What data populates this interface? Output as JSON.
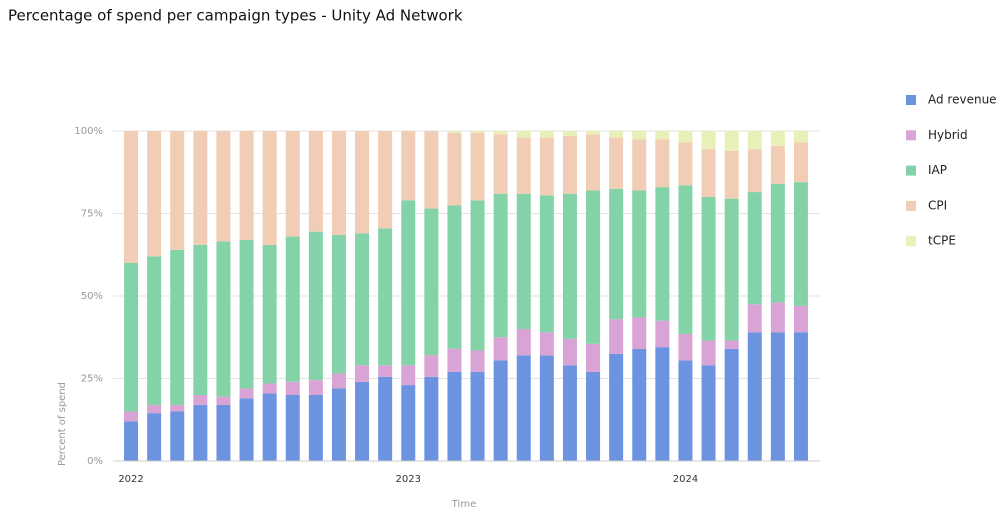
{
  "chart_data": {
    "type": "stacked_bar",
    "title": "Percentage of spend per campaign types - Unity Ad Network",
    "x_label": "Time",
    "y_label": "Percent of spend",
    "categories": [
      "2022",
      null,
      null,
      null,
      null,
      null,
      null,
      null,
      null,
      null,
      null,
      null,
      "2023",
      null,
      null,
      null,
      null,
      null,
      null,
      null,
      null,
      null,
      null,
      null,
      "2024",
      null,
      null,
      null,
      null,
      null
    ],
    "series": [
      {
        "name": "Ad revenue",
        "color": "#6b93e0",
        "values": [
          12,
          14.5,
          15,
          17,
          17,
          19,
          20.5,
          20,
          20,
          22,
          24,
          25.5,
          23,
          25.5,
          27,
          27,
          30.5,
          32,
          32,
          29,
          27,
          32.5,
          34,
          34.5,
          30.5,
          29,
          34,
          39,
          39,
          39
        ]
      },
      {
        "name": "Hybrid",
        "color": "#d9a3d6",
        "values": [
          3,
          2.5,
          2,
          3,
          2.5,
          3,
          3,
          4,
          4.5,
          4.5,
          5,
          3.5,
          6,
          6.5,
          7,
          6.5,
          7,
          8,
          7,
          8,
          8.5,
          10.5,
          9.5,
          8,
          8,
          7.5,
          2.5,
          8.5,
          9,
          8
        ]
      },
      {
        "name": "IAP",
        "color": "#84d3a8",
        "values": [
          45,
          45,
          47,
          45.5,
          47,
          45,
          42,
          44,
          45,
          42,
          40,
          41.5,
          50,
          44.5,
          43.5,
          45.5,
          43.5,
          41,
          41.5,
          44,
          46.5,
          39.5,
          38.5,
          40.5,
          45,
          43.5,
          43,
          34,
          36,
          37.5
        ]
      },
      {
        "name": "CPI",
        "color": "#f0cdb4",
        "values": [
          40,
          38,
          36,
          34.5,
          33.5,
          33,
          34.5,
          32,
          30.5,
          31.5,
          31,
          29.5,
          21,
          23.5,
          22,
          20.5,
          18,
          17,
          17.5,
          17.5,
          17,
          15.5,
          15.5,
          14.5,
          13,
          14.5,
          14.5,
          13,
          11.5,
          12
        ]
      },
      {
        "name": "tCPE",
        "color": "#e8f0b8",
        "values": [
          0,
          0,
          0,
          0,
          0,
          0,
          0,
          0,
          0,
          0,
          0,
          0,
          0,
          0,
          0.5,
          0.5,
          1,
          2,
          2,
          1.5,
          1,
          2,
          2.5,
          2.5,
          3.5,
          5.5,
          6,
          5.5,
          4.5,
          3.5
        ]
      }
    ],
    "ylim": [
      0,
      100
    ],
    "yticks": [
      {
        "value": 0,
        "label": "0%"
      },
      {
        "value": 25,
        "label": "25%"
      },
      {
        "value": 50,
        "label": "50%"
      },
      {
        "value": 75,
        "label": "75%"
      },
      {
        "value": 100,
        "label": "100%"
      }
    ],
    "grid": true,
    "legend": "right"
  }
}
